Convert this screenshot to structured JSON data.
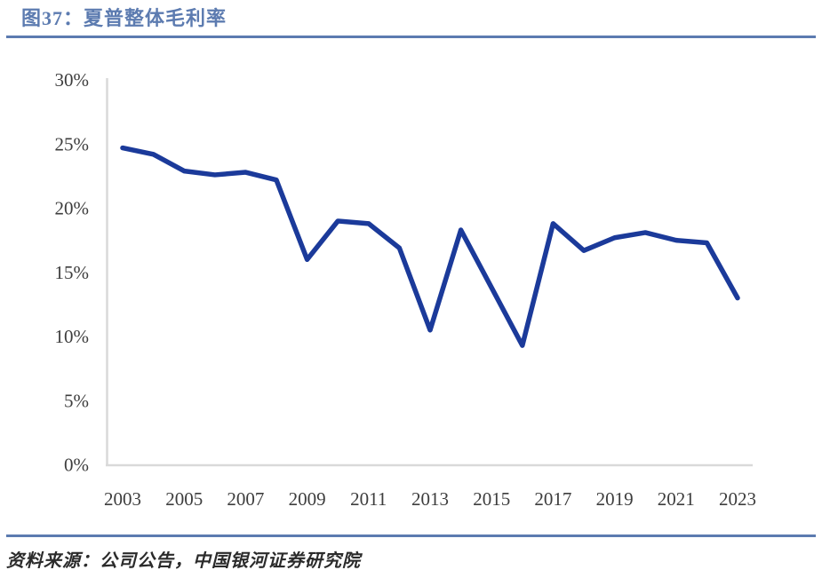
{
  "header": {
    "title": "图37：夏普整体毛利率"
  },
  "footer": {
    "source": "资料来源：公司公告，中国银河证券研究院"
  },
  "colors": {
    "accent_blue": "#5c7bb0",
    "line_blue": "#1b3a9a",
    "axis_gray": "#d9d9d9",
    "tick_text": "#3d3d3d"
  },
  "chart_data": {
    "type": "line",
    "title": "夏普整体毛利率",
    "xlabel": "",
    "ylabel": "",
    "x": [
      2003,
      2004,
      2005,
      2006,
      2007,
      2008,
      2009,
      2010,
      2011,
      2012,
      2013,
      2014,
      2015,
      2016,
      2017,
      2018,
      2019,
      2020,
      2021,
      2022,
      2023
    ],
    "series": [
      {
        "name": "夏普整体毛利率",
        "values": [
          24.7,
          24.2,
          22.9,
          22.6,
          22.8,
          22.2,
          16.0,
          19.0,
          18.8,
          16.9,
          10.5,
          18.3,
          13.8,
          9.3,
          18.8,
          16.7,
          17.7,
          18.1,
          17.5,
          17.3,
          13.0
        ]
      }
    ],
    "ylim": [
      0,
      30
    ],
    "ytick_step": 5,
    "ytick_suffix": "%",
    "xticks": [
      2003,
      2005,
      2007,
      2009,
      2011,
      2013,
      2015,
      2017,
      2019,
      2021,
      2023
    ],
    "grid": false,
    "legend_position": "none"
  }
}
